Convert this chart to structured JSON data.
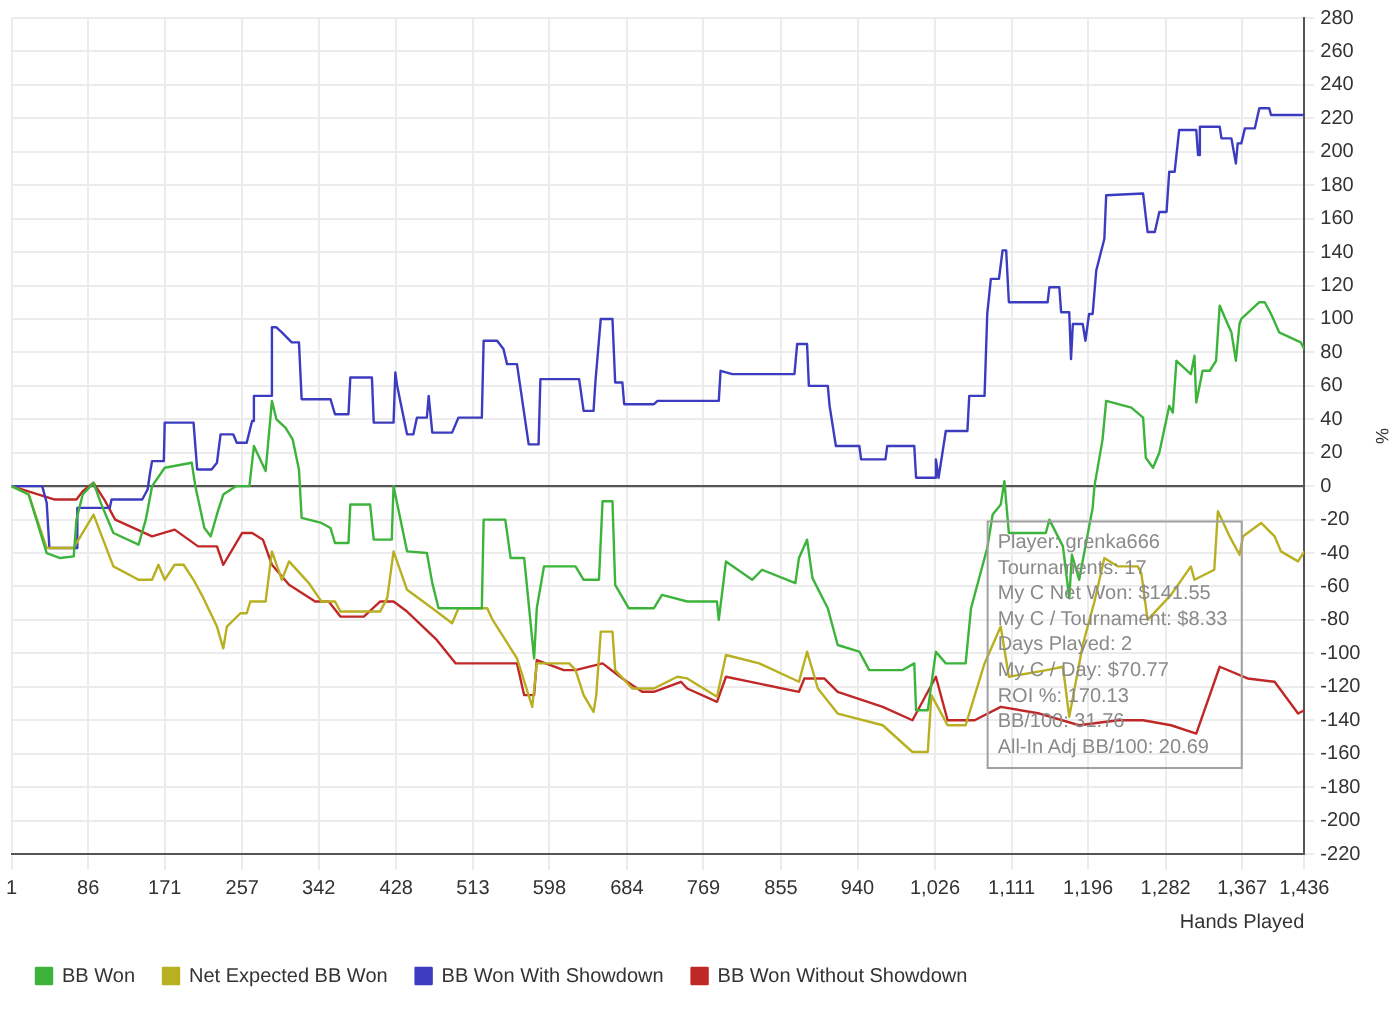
{
  "chart_data": {
    "type": "line",
    "xlabel": "Hands Played",
    "ylabel": "%",
    "xlim": [
      1,
      1436
    ],
    "xticks": [
      1,
      86,
      171,
      257,
      342,
      428,
      513,
      598,
      684,
      769,
      855,
      940,
      {
        "value": 1026,
        "label": "1,026"
      },
      {
        "value": 1111,
        "label": "1,111"
      },
      {
        "value": 1196,
        "label": "1,196"
      },
      {
        "value": 1282,
        "label": "1,282"
      },
      {
        "value": 1367,
        "label": "1,367"
      },
      {
        "value": 1436,
        "label": "1,436"
      }
    ],
    "ylim": [
      -220,
      280
    ],
    "yticks": [
      -220,
      -200,
      -180,
      -160,
      -140,
      -120,
      -100,
      -80,
      -60,
      -40,
      -20,
      0,
      20,
      40,
      60,
      80,
      100,
      120,
      140,
      160,
      180,
      200,
      220,
      240,
      260,
      280
    ],
    "grid": true,
    "legend": "bottom",
    "marker": "none",
    "line_style": "solid",
    "ref_lines": [
      {
        "axis": "y",
        "value": 0,
        "color": "#555555"
      }
    ],
    "annotations": [
      "Player: grenka666",
      "Tournaments: 17",
      "My C Net Won: $141.55",
      "My C / Tournament: $8.33",
      "Days Played: 2",
      "My C / Day: $70.77",
      "ROI %: 170.13",
      "BB/100: 31.76",
      "All-In Adj BB/100: 20.69"
    ],
    "series": [
      {
        "name": "BB Won",
        "color": "#3cb43c",
        "x": [
          1,
          20,
          40,
          55,
          70,
          73,
          80,
          92,
          100,
          114,
          142,
          150,
          157,
          171,
          201,
          205,
          215,
          222,
          230,
          236,
          250,
          265,
          270,
          283,
          290,
          295,
          305,
          313,
          320,
          323,
          345,
          355,
          360,
          375,
          377,
          399,
          403,
          423,
          425,
          440,
          462,
          468,
          475,
          523,
          525,
          549,
          555,
          570,
          581,
          584,
          592,
          627,
          636,
          653,
          657,
          668,
          671,
          686,
          714,
          723,
          751,
          784,
          786,
          794,
          823,
          834,
          871,
          875,
          884,
          890,
          907,
          918,
          942,
          953,
          990,
          1003,
          1005,
          1018,
          1027,
          1038,
          1060,
          1066,
          1084,
          1090,
          1099,
          1103,
          1108,
          1149,
          1153,
          1168,
          1175,
          1178,
          1186,
          1201,
          1203,
          1212,
          1216,
          1244,
          1257,
          1260,
          1268,
          1275,
          1286,
          1290,
          1294,
          1310,
          1314,
          1316,
          1323,
          1331,
          1338,
          1342,
          1350,
          1355,
          1360,
          1364,
          1366,
          1386,
          1392,
          1399,
          1408,
          1432,
          1436
        ],
        "values": [
          0,
          -5,
          -40,
          -43,
          -42,
          -20,
          -5,
          2,
          -10,
          -28,
          -35,
          -20,
          0,
          11,
          14,
          0,
          -25,
          -30,
          -15,
          -5,
          0,
          0,
          24,
          9,
          51,
          40,
          35,
          28,
          10,
          -19,
          -22,
          -25,
          -34,
          -34,
          -11,
          -11,
          -32,
          -32,
          0,
          -39,
          -40,
          -58,
          -73,
          -73,
          -20,
          -20,
          -43,
          -43,
          -103,
          -73,
          -48,
          -48,
          -56,
          -56,
          -9,
          -9,
          -59,
          -73,
          -73,
          -65,
          -69,
          -69,
          -80,
          -45,
          -56,
          -50,
          -58,
          -43,
          -32,
          -55,
          -73,
          -95,
          -99,
          -110,
          -110,
          -106,
          -134,
          -134,
          -99,
          -106,
          -106,
          -73,
          -37,
          -17,
          -11,
          3,
          -28,
          -28,
          -20,
          -36,
          -67,
          -41,
          -56,
          -13,
          0,
          28,
          51,
          47,
          41,
          17,
          11,
          20,
          48,
          44,
          75,
          67,
          78,
          50,
          69,
          69,
          75,
          108,
          98,
          92,
          75,
          97,
          100,
          110,
          110,
          103,
          92,
          86,
          82
        ]
      },
      {
        "name": "Net Expected BB Won",
        "color": "#b8b020",
        "x": [
          1,
          20,
          40,
          70,
          73,
          92,
          114,
          142,
          157,
          164,
          171,
          182,
          192,
          203,
          214,
          229,
          236,
          240,
          255,
          262,
          266,
          283,
          290,
          301,
          309,
          331,
          345,
          360,
          366,
          410,
          418,
          425,
          440,
          468,
          490,
          497,
          529,
          535,
          562,
          579,
          584,
          620,
          627,
          636,
          647,
          650,
          655,
          668,
          671,
          690,
          714,
          740,
          751,
          784,
          794,
          831,
          875,
          884,
          896,
          918,
          968,
          1001,
          1018,
          1022,
          1040,
          1060,
          1081,
          1099,
          1108,
          1150,
          1168,
          1175,
          1190,
          1203,
          1214,
          1229,
          1251,
          1255,
          1262,
          1288,
          1310,
          1314,
          1336,
          1340,
          1353,
          1364,
          1368,
          1388,
          1403,
          1410,
          1429,
          1436
        ],
        "values": [
          0,
          -5,
          -37,
          -37,
          -34,
          -17,
          -48,
          -56,
          -56,
          -47,
          -56,
          -47,
          -47,
          -56,
          -67,
          -84,
          -97,
          -84,
          -76,
          -76,
          -69,
          -69,
          -39,
          -56,
          -45,
          -58,
          -69,
          -69,
          -75,
          -75,
          -67,
          -39,
          -62,
          -73,
          -82,
          -73,
          -73,
          -80,
          -103,
          -132,
          -106,
          -106,
          -110,
          -125,
          -135,
          -125,
          -87,
          -87,
          -110,
          -121,
          -121,
          -114,
          -115,
          -126,
          -101,
          -106,
          -117,
          -99,
          -121,
          -136,
          -143,
          -159,
          -159,
          -125,
          -143,
          -143,
          -106,
          -84,
          -114,
          -110,
          -108,
          -138,
          -95,
          -69,
          -43,
          -48,
          -48,
          -52,
          -80,
          -65,
          -48,
          -56,
          -50,
          -15,
          -30,
          -41,
          -30,
          -22,
          -30,
          -39,
          -45,
          -39
        ]
      },
      {
        "name": "BB Won With Showdown",
        "color": "#3c3cc0",
        "x": [
          1,
          35,
          40,
          43,
          73,
          74,
          110,
          112,
          146,
          152,
          155,
          157,
          170,
          171,
          203,
          207,
          223,
          229,
          233,
          247,
          251,
          262,
          268,
          270,
          288,
          290,
          295,
          301,
          312,
          320,
          323,
          355,
          360,
          375,
          377,
          401,
          403,
          425,
          427,
          429,
          440,
          447,
          451,
          462,
          464,
          468,
          490,
          497,
          523,
          525,
          540,
          547,
          551,
          562,
          575,
          586,
          588,
          631,
          636,
          647,
          649,
          655,
          668,
          671,
          679,
          681,
          714,
          718,
          751,
          786,
          788,
          801,
          870,
          873,
          884,
          886,
          907,
          909,
          916,
          942,
          944,
          971,
          973,
          1003,
          1005,
          1025,
          1027,
          1030,
          1038,
          1062,
          1064,
          1081,
          1084,
          1088,
          1097,
          1101,
          1105,
          1108,
          1151,
          1153,
          1164,
          1166,
          1175,
          1177,
          1179,
          1190,
          1193,
          1197,
          1201,
          1205,
          1214,
          1216,
          1257,
          1262,
          1270,
          1275,
          1283,
          1286,
          1292,
          1297,
          1316,
          1318,
          1320,
          1342,
          1344,
          1355,
          1360,
          1362,
          1366,
          1370,
          1381,
          1386,
          1397,
          1399,
          1436
        ],
        "values": [
          0,
          0,
          -10,
          -37,
          -37,
          -13,
          -13,
          -8,
          -8,
          -2,
          9,
          15,
          15,
          38,
          38,
          10,
          10,
          14,
          31,
          31,
          26,
          26,
          39,
          54,
          54,
          95,
          95,
          92,
          86,
          86,
          52,
          52,
          43,
          43,
          65,
          65,
          38,
          38,
          68,
          60,
          31,
          31,
          41,
          41,
          54,
          32,
          32,
          41,
          41,
          87,
          87,
          82,
          73,
          73,
          25,
          25,
          64,
          64,
          45,
          45,
          62,
          100,
          100,
          62,
          62,
          49,
          49,
          51,
          51,
          51,
          69,
          67,
          67,
          85,
          85,
          60,
          60,
          48,
          24,
          24,
          16,
          16,
          24,
          24,
          5,
          5,
          16,
          5,
          33,
          33,
          54,
          54,
          103,
          124,
          124,
          141,
          141,
          110,
          110,
          119,
          119,
          104,
          104,
          76,
          97,
          97,
          87,
          103,
          103,
          129,
          148,
          174,
          175,
          152,
          152,
          164,
          164,
          188,
          188,
          213,
          213,
          198,
          215,
          215,
          208,
          208,
          193,
          205,
          205,
          214,
          214,
          226,
          226,
          222,
          222
        ]
      },
      {
        "name": "BB Won Without Showdown",
        "color": "#c02828",
        "x": [
          1,
          49,
          73,
          80,
          92,
          105,
          116,
          157,
          182,
          208,
          229,
          236,
          257,
          268,
          280,
          290,
          309,
          338,
          353,
          366,
          392,
          410,
          425,
          440,
          473,
          494,
          562,
          570,
          581,
          584,
          614,
          627,
          657,
          679,
          701,
          714,
          744,
          751,
          784,
          794,
          875,
          881,
          903,
          918,
          968,
          1001,
          1027,
          1040,
          1070,
          1099,
          1142,
          1186,
          1229,
          1257,
          1288,
          1316,
          1342,
          1373,
          1403,
          1429,
          1436
        ],
        "values": [
          0,
          -8,
          -8,
          -3,
          2,
          -9,
          -20,
          -30,
          -26,
          -36,
          -36,
          -47,
          -28,
          -28,
          -32,
          -47,
          -59,
          -69,
          -69,
          -78,
          -78,
          -69,
          -69,
          -75,
          -92,
          -106,
          -106,
          -125,
          -125,
          -104,
          -110,
          -110,
          -106,
          -115,
          -123,
          -123,
          -117,
          -121,
          -129,
          -114,
          -123,
          -115,
          -115,
          -123,
          -132,
          -140,
          -114,
          -140,
          -140,
          -132,
          -136,
          -143,
          -140,
          -140,
          -143,
          -148,
          -108,
          -115,
          -117,
          -136,
          -134
        ]
      }
    ]
  }
}
